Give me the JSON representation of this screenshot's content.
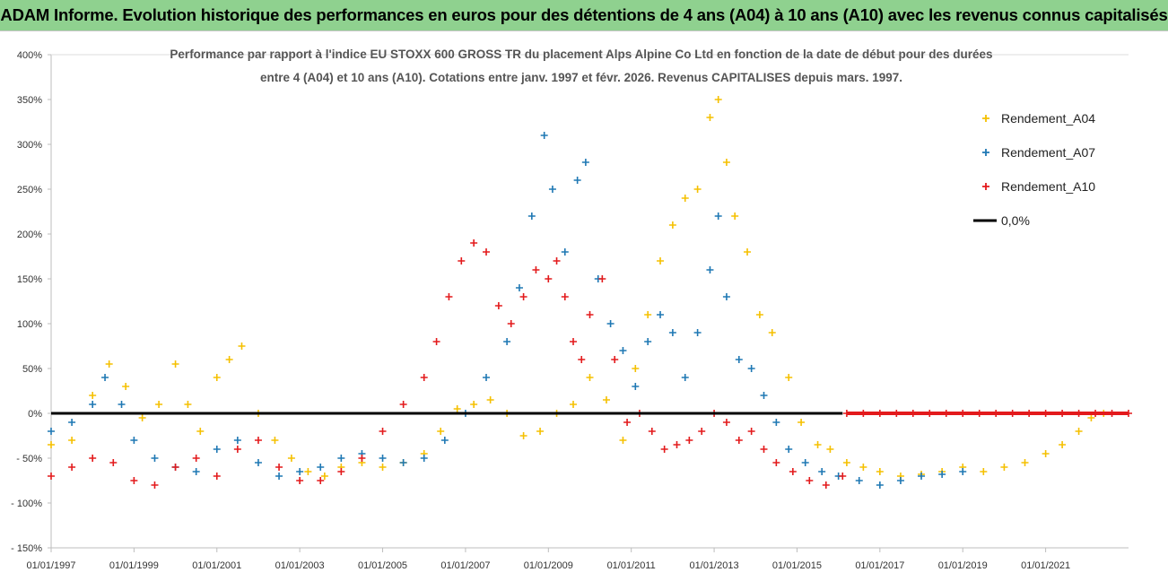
{
  "banner": {
    "text": "ADAM Informe. Evolution historique des performances en euros pour des détentions de 4 ans (A04) à 10 ans (A10) avec les revenus connus capitalisés"
  },
  "chart_data": {
    "type": "scatter",
    "title_lines": [
      "Performance par rapport à l'indice EU STOXX 600 GROSS TR  du placement Alps Alpine Co Ltd en fonction de la date de début pour des durées",
      "entre 4 (A04) et 10 ans (A10). Cotations entre janv. 1997 et févr. 2026. Revenus CAPITALISES depuis mars. 1997."
    ],
    "xlim": [
      1997.0,
      2023.0
    ],
    "ylim": [
      -150,
      400
    ],
    "y_ticks": [
      400,
      350,
      300,
      250,
      200,
      150,
      100,
      50,
      0,
      -50,
      -100,
      -150
    ],
    "y_tick_labels": [
      "400%",
      "350%",
      "300%",
      "250%",
      "200%",
      "150%",
      "100%",
      "50%",
      "0%",
      "- 50%",
      "- 100%",
      "- 150%"
    ],
    "x_ticks": [
      1997,
      1999,
      2001,
      2003,
      2005,
      2007,
      2009,
      2011,
      2013,
      2015,
      2017,
      2019,
      2021
    ],
    "x_tick_labels": [
      "01/01/1997",
      "01/01/1999",
      "01/01/2001",
      "01/01/2003",
      "01/01/2005",
      "01/01/2007",
      "01/01/2009",
      "01/01/2011",
      "01/01/2013",
      "01/01/2015",
      "01/01/2017",
      "01/01/2019",
      "01/01/2021"
    ],
    "legend_position": "top-right",
    "grid": false,
    "series": [
      {
        "name": "Rendement_A04",
        "color": "#f5c000",
        "marker": "+",
        "x": [
          1997.0,
          1997.5,
          1998.0,
          1998.4,
          1998.8,
          1999.2,
          1999.6,
          2000.0,
          2000.3,
          2000.6,
          2001.0,
          2001.3,
          2001.6,
          2002.0,
          2002.4,
          2002.8,
          2003.2,
          2003.6,
          2004.0,
          2004.5,
          2005.0,
          2005.5,
          2006.0,
          2006.4,
          2006.8,
          2007.2,
          2007.6,
          2008.0,
          2008.4,
          2008.8,
          2009.2,
          2009.6,
          2010.0,
          2010.4,
          2010.8,
          2011.1,
          2011.4,
          2011.7,
          2012.0,
          2012.3,
          2012.6,
          2012.9,
          2013.1,
          2013.3,
          2013.5,
          2013.8,
          2014.1,
          2014.4,
          2014.8,
          2015.1,
          2015.5,
          2015.8,
          2016.2,
          2016.6,
          2017.0,
          2017.5,
          2018.0,
          2018.5,
          2019.0,
          2019.5,
          2020.0,
          2020.5,
          2021.0,
          2021.4,
          2021.8,
          2022.1,
          2022.4
        ],
        "y": [
          -35,
          -30,
          20,
          55,
          30,
          -5,
          10,
          55,
          10,
          -20,
          40,
          60,
          75,
          0,
          -30,
          -50,
          -65,
          -70,
          -60,
          -55,
          -60,
          -55,
          -45,
          -20,
          5,
          10,
          15,
          0,
          -25,
          -20,
          0,
          10,
          40,
          15,
          -30,
          50,
          110,
          170,
          210,
          240,
          250,
          330,
          350,
          280,
          220,
          180,
          110,
          90,
          40,
          -10,
          -35,
          -40,
          -55,
          -60,
          -65,
          -70,
          -68,
          -65,
          -60,
          -65,
          -60,
          -55,
          -45,
          -35,
          -20,
          -5,
          0
        ]
      },
      {
        "name": "Rendement_A07",
        "color": "#1f78b4",
        "marker": "+",
        "x": [
          1997.0,
          1997.5,
          1998.0,
          1998.3,
          1998.7,
          1999.0,
          1999.5,
          2000.0,
          2000.5,
          2001.0,
          2001.5,
          2002.0,
          2002.5,
          2003.0,
          2003.5,
          2004.0,
          2004.5,
          2005.0,
          2005.5,
          2006.0,
          2006.5,
          2007.0,
          2007.5,
          2008.0,
          2008.3,
          2008.6,
          2008.9,
          2009.1,
          2009.4,
          2009.7,
          2009.9,
          2010.2,
          2010.5,
          2010.8,
          2011.1,
          2011.4,
          2011.7,
          2012.0,
          2012.3,
          2012.6,
          2012.9,
          2013.1,
          2013.3,
          2013.6,
          2013.9,
          2014.2,
          2014.5,
          2014.8,
          2015.2,
          2015.6,
          2016.0,
          2016.5,
          2017.0,
          2017.5,
          2018.0,
          2018.5,
          2019.0
        ],
        "y": [
          -20,
          -10,
          10,
          40,
          10,
          -30,
          -50,
          -60,
          -65,
          -40,
          -30,
          -55,
          -70,
          -65,
          -60,
          -50,
          -45,
          -50,
          -55,
          -50,
          -30,
          0,
          40,
          80,
          140,
          220,
          310,
          250,
          180,
          260,
          280,
          150,
          100,
          70,
          30,
          80,
          110,
          90,
          40,
          90,
          160,
          220,
          130,
          60,
          50,
          20,
          -10,
          -40,
          -55,
          -65,
          -70,
          -75,
          -80,
          -75,
          -70,
          -68,
          -65
        ]
      },
      {
        "name": "Rendement_A10",
        "color": "#e31a1c",
        "marker": "+",
        "x": [
          1997.0,
          1997.5,
          1998.0,
          1998.5,
          1999.0,
          1999.5,
          2000.0,
          2000.5,
          2001.0,
          2001.5,
          2002.0,
          2002.5,
          2003.0,
          2003.5,
          2004.0,
          2004.5,
          2005.0,
          2005.5,
          2006.0,
          2006.3,
          2006.6,
          2006.9,
          2007.2,
          2007.5,
          2007.8,
          2008.1,
          2008.4,
          2008.7,
          2009.0,
          2009.2,
          2009.4,
          2009.6,
          2009.8,
          2010.0,
          2010.3,
          2010.6,
          2010.9,
          2011.2,
          2011.5,
          2011.8,
          2012.1,
          2012.4,
          2012.7,
          2013.0,
          2013.3,
          2013.6,
          2013.9,
          2014.2,
          2014.5,
          2014.9,
          2015.3,
          2015.7,
          2016.1
        ],
        "y": [
          -70,
          -60,
          -50,
          -55,
          -75,
          -80,
          -60,
          -50,
          -70,
          -40,
          -30,
          -60,
          -75,
          -75,
          -65,
          -50,
          -20,
          10,
          40,
          80,
          130,
          170,
          190,
          180,
          120,
          100,
          130,
          160,
          150,
          170,
          130,
          80,
          60,
          110,
          150,
          60,
          -10,
          0,
          -20,
          -40,
          -35,
          -30,
          -20,
          0,
          -10,
          -30,
          -20,
          -40,
          -55,
          -65,
          -75,
          -80,
          -70
        ]
      },
      {
        "name": "A10_zero_tail",
        "legend": false,
        "color": "#e31a1c",
        "marker": "+",
        "x": [
          2016.2,
          2016.6,
          2017.0,
          2017.4,
          2017.8,
          2018.2,
          2018.6,
          2019.0,
          2019.4,
          2019.8,
          2020.2,
          2020.6,
          2021.0,
          2021.4,
          2021.8,
          2022.2,
          2022.6,
          2023.0
        ],
        "y": [
          0,
          0,
          0,
          0,
          0,
          0,
          0,
          0,
          0,
          0,
          0,
          0,
          0,
          0,
          0,
          0,
          0,
          0
        ]
      },
      {
        "name": "0,0%",
        "color": "#000000",
        "marker": "line",
        "x": [
          1997.0,
          2016.1
        ],
        "y": [
          0,
          0
        ]
      }
    ]
  }
}
